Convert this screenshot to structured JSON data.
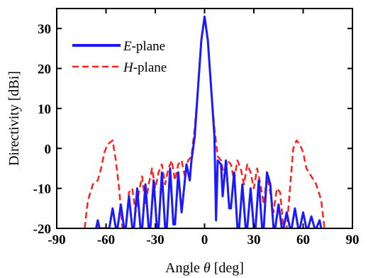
{
  "chart_data": {
    "type": "line",
    "xlabel_prefix": "Angle ",
    "xlabel_symbol": "θ",
    "xlabel_unit": " [deg]",
    "ylabel": "Directivity [dBi]",
    "xlim": [
      -90,
      90
    ],
    "ylim": [
      -20,
      35
    ],
    "xticks": [
      -90,
      -60,
      -30,
      0,
      30,
      60,
      90
    ],
    "yticks": [
      -20,
      -10,
      0,
      10,
      20,
      30
    ],
    "grid": false,
    "legend_position": "top-left",
    "series": [
      {
        "name_italic": "E",
        "name_rest": "-plane",
        "color": "#1a1aff",
        "style": "solid",
        "points": [
          [
            -66,
            -20
          ],
          [
            -65,
            -18
          ],
          [
            -64,
            -20
          ],
          [
            -58,
            -20
          ],
          [
            -56,
            -15
          ],
          [
            -54,
            -20
          ],
          [
            -53,
            -20
          ],
          [
            -51,
            -14
          ],
          [
            -49,
            -20
          ],
          [
            -48,
            -20
          ],
          [
            -46,
            -12
          ],
          [
            -44,
            -20
          ],
          [
            -43,
            -20
          ],
          [
            -41,
            -10
          ],
          [
            -39,
            -20
          ],
          [
            -38,
            -20
          ],
          [
            -36,
            -9
          ],
          [
            -34,
            -20
          ],
          [
            -33,
            -20
          ],
          [
            -31,
            -8
          ],
          [
            -29,
            -20
          ],
          [
            -28,
            -20
          ],
          [
            -26,
            -6
          ],
          [
            -24,
            -20
          ],
          [
            -23,
            -20
          ],
          [
            -21,
            -5
          ],
          [
            -19,
            -19
          ],
          [
            -18,
            -19
          ],
          [
            -16,
            -6
          ],
          [
            -14,
            -16
          ],
          [
            -13,
            -12
          ],
          [
            -11,
            -4
          ],
          [
            -9,
            -8
          ],
          [
            -8,
            -3
          ],
          [
            -6,
            3
          ],
          [
            -4,
            15
          ],
          [
            -2,
            27
          ],
          [
            0,
            33
          ],
          [
            2,
            27
          ],
          [
            4,
            15
          ],
          [
            6,
            3
          ],
          [
            7,
            -18
          ],
          [
            8,
            -3
          ],
          [
            10,
            -4
          ],
          [
            11,
            -12
          ],
          [
            13,
            -3
          ],
          [
            15,
            -15
          ],
          [
            16,
            -15
          ],
          [
            18,
            -6
          ],
          [
            20,
            -20
          ],
          [
            21,
            -20
          ],
          [
            23,
            -9
          ],
          [
            25,
            -20
          ],
          [
            26,
            -20
          ],
          [
            28,
            -10
          ],
          [
            30,
            -20
          ],
          [
            31,
            -20
          ],
          [
            33,
            -8
          ],
          [
            35,
            -20
          ],
          [
            36,
            -20
          ],
          [
            38,
            -6
          ],
          [
            40,
            -9
          ],
          [
            42,
            -20
          ],
          [
            43,
            -20
          ],
          [
            45,
            -14
          ],
          [
            47,
            -20
          ],
          [
            48,
            -20
          ],
          [
            50,
            -16
          ],
          [
            52,
            -20
          ],
          [
            53,
            -20
          ],
          [
            55,
            -15
          ],
          [
            57,
            -20
          ],
          [
            58,
            -20
          ],
          [
            60,
            -16
          ],
          [
            62,
            -20
          ],
          [
            63,
            -20
          ],
          [
            65,
            -17
          ],
          [
            67,
            -20
          ],
          [
            68,
            -20
          ],
          [
            70,
            -18
          ],
          [
            71,
            -20
          ]
        ]
      },
      {
        "name_italic": "H",
        "name_rest": "-plane",
        "color": "#ff2020",
        "style": "dashed",
        "points": [
          [
            -73,
            -20
          ],
          [
            -71,
            -13
          ],
          [
            -68,
            -9
          ],
          [
            -65,
            -8
          ],
          [
            -63,
            -5
          ],
          [
            -61,
            -1
          ],
          [
            -59,
            1
          ],
          [
            -56,
            2
          ],
          [
            -54,
            -3
          ],
          [
            -52,
            -10
          ],
          [
            -50,
            -20
          ],
          [
            -48,
            -20
          ],
          [
            -46,
            -11
          ],
          [
            -44,
            -10
          ],
          [
            -42,
            -16
          ],
          [
            -40,
            -11
          ],
          [
            -38,
            -7
          ],
          [
            -36,
            -14
          ],
          [
            -34,
            -9
          ],
          [
            -32,
            -5
          ],
          [
            -30,
            -10
          ],
          [
            -28,
            -6
          ],
          [
            -26,
            -4
          ],
          [
            -24,
            -9
          ],
          [
            -22,
            -5
          ],
          [
            -20,
            -3
          ],
          [
            -18,
            -8
          ],
          [
            -16,
            -4
          ],
          [
            -14,
            -3
          ],
          [
            -12,
            -7
          ],
          [
            -10,
            -3
          ],
          [
            -8,
            -2
          ],
          [
            -6,
            5
          ],
          [
            -4,
            15
          ],
          [
            -2,
            27
          ],
          [
            0,
            33
          ],
          [
            2,
            27
          ],
          [
            4,
            15
          ],
          [
            6,
            5
          ],
          [
            8,
            -2
          ],
          [
            10,
            -3
          ],
          [
            12,
            -7
          ],
          [
            14,
            -3
          ],
          [
            16,
            -4
          ],
          [
            18,
            -8
          ],
          [
            20,
            -3
          ],
          [
            22,
            -5
          ],
          [
            24,
            -9
          ],
          [
            26,
            -4
          ],
          [
            28,
            -6
          ],
          [
            30,
            -10
          ],
          [
            32,
            -5
          ],
          [
            34,
            -9
          ],
          [
            36,
            -14
          ],
          [
            38,
            -7
          ],
          [
            40,
            -11
          ],
          [
            42,
            -16
          ],
          [
            44,
            -10
          ],
          [
            46,
            -11
          ],
          [
            48,
            -20
          ],
          [
            50,
            -20
          ],
          [
            52,
            -10
          ],
          [
            54,
            0
          ],
          [
            56,
            2
          ],
          [
            58,
            1
          ],
          [
            60,
            -1
          ],
          [
            62,
            -5
          ],
          [
            65,
            -7
          ],
          [
            68,
            -9
          ],
          [
            71,
            -13
          ],
          [
            73,
            -20
          ]
        ]
      }
    ]
  }
}
